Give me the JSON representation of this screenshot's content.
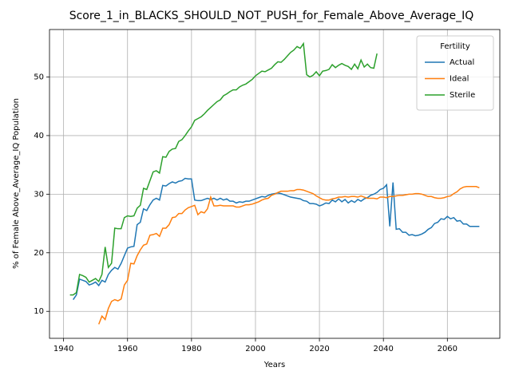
{
  "chart_data": {
    "type": "line",
    "title": "Score_1_in_BLACKS_SHOULD_NOT_PUSH_for_Female_Above_Average_IQ",
    "xlabel": "Years",
    "ylabel": "% of Female Above_Average_IQ Population",
    "x": [
      1942,
      1943,
      1944,
      1945,
      1946,
      1947,
      1948,
      1949,
      1950,
      1951,
      1952,
      1953,
      1954,
      1955,
      1956,
      1957,
      1958,
      1959,
      1960,
      1961,
      1962,
      1963,
      1964,
      1965,
      1966,
      1967,
      1968,
      1969,
      1970,
      1971,
      1972,
      1973,
      1974,
      1975,
      1976,
      1977,
      1978,
      1979,
      1980,
      1981,
      1982,
      1983,
      1984,
      1985,
      1986,
      1987,
      1988,
      1989,
      1990,
      1991,
      1992,
      1993,
      1994,
      1995,
      1996,
      1997,
      1998,
      1999,
      2000,
      2001,
      2002,
      2003,
      2004,
      2005,
      2006,
      2007,
      2008,
      2009,
      2010,
      2011,
      2012,
      2013,
      2014,
      2015,
      2016,
      2017,
      2018,
      2019,
      2020,
      2021,
      2022,
      2023,
      2024,
      2025,
      2026,
      2027,
      2028,
      2029,
      2030,
      2031,
      2032,
      2033,
      2034,
      2035,
      2036,
      2037,
      2038,
      2039,
      2040,
      2041,
      2042,
      2043,
      2044,
      2045,
      2046,
      2047,
      2048,
      2049,
      2050,
      2051,
      2052,
      2053,
      2054,
      2055,
      2056,
      2057,
      2058,
      2059,
      2060,
      2061,
      2062,
      2063,
      2064,
      2065,
      2066,
      2067,
      2068,
      2069,
      2070
    ],
    "series": [
      {
        "name": "Actual",
        "color": "#1f77b4",
        "values": [
          null,
          12,
          12.8,
          15.5,
          15.3,
          15.1,
          14.5,
          14.7,
          15,
          14.4,
          15.3,
          15,
          16.3,
          17,
          17.5,
          17.2,
          18.2,
          19.5,
          20.8,
          21,
          21.1,
          24.8,
          25.2,
          27.5,
          27.2,
          28.2,
          29,
          29.3,
          29,
          31.5,
          31.4,
          31.8,
          32.1,
          31.9,
          32.2,
          32.3,
          32.7,
          32.6,
          32.6,
          29,
          28.9,
          28.9,
          29.1,
          29.3,
          29.1,
          29.3,
          29,
          29.3,
          29,
          29.2,
          28.8,
          28.8,
          28.5,
          28.7,
          28.6,
          28.8,
          28.8,
          29,
          29.2,
          29.4,
          29.6,
          29.5,
          29.8,
          30,
          30.1,
          30.2,
          30.1,
          29.9,
          29.7,
          29.5,
          29.4,
          29.3,
          29.2,
          28.9,
          28.8,
          28.4,
          28.4,
          28.3,
          28,
          28.2,
          28.5,
          28.4,
          29,
          28.7,
          29.2,
          28.7,
          29.1,
          28.5,
          28.9,
          28.6,
          29.1,
          28.8,
          29.2,
          29.4,
          29.8,
          30,
          30.3,
          30.8,
          31,
          31.6,
          24.5,
          32,
          24,
          24.1,
          23.5,
          23.5,
          23,
          23.1,
          22.9,
          23,
          23.2,
          23.5,
          24,
          24.3,
          25,
          25.2,
          25.8,
          25.7,
          26.2,
          25.8,
          26,
          25.4,
          25.5,
          24.9,
          24.9,
          24.5,
          24.5,
          24.5,
          24.5
        ]
      },
      {
        "name": "Ideal",
        "color": "#ff7f0e",
        "values": [
          null,
          null,
          null,
          null,
          null,
          null,
          null,
          null,
          null,
          7.8,
          9.2,
          8.6,
          10.5,
          11.7,
          12,
          11.8,
          12.1,
          14.5,
          15.3,
          18.2,
          18.1,
          19.5,
          20.5,
          21.3,
          21.5,
          23,
          23.1,
          23.3,
          22.8,
          24.2,
          24.2,
          24.8,
          26,
          26.1,
          26.7,
          26.7,
          27.3,
          27.7,
          27.9,
          28.1,
          26.5,
          27,
          26.8,
          27.5,
          29.5,
          28,
          28,
          28.1,
          28,
          28,
          28,
          28,
          27.8,
          27.8,
          28,
          28.2,
          28.2,
          28.3,
          28.5,
          28.7,
          29,
          29.2,
          29.3,
          29.8,
          30,
          30.3,
          30.5,
          30.5,
          30.5,
          30.6,
          30.6,
          30.8,
          30.8,
          30.7,
          30.5,
          30.3,
          30.1,
          29.7,
          29.4,
          29.1,
          29,
          29,
          29.2,
          29.3,
          29.5,
          29.5,
          29.6,
          29.5,
          29.6,
          29.6,
          29.5,
          29.7,
          29.5,
          29.3,
          29.3,
          29.3,
          29.2,
          29.5,
          29.5,
          29.4,
          29.6,
          29.6,
          29.7,
          29.8,
          29.8,
          29.9,
          30,
          30,
          30.1,
          30.1,
          30,
          29.8,
          29.6,
          29.6,
          29.4,
          29.3,
          29.3,
          29.4,
          29.6,
          29.7,
          30.1,
          30.4,
          30.9,
          31.2,
          31.3,
          31.3,
          31.3,
          31.3,
          31.1
        ]
      },
      {
        "name": "Sterile",
        "color": "#2ca02c",
        "values": [
          12.8,
          12.8,
          13.2,
          16.3,
          16.1,
          15.8,
          15,
          15.3,
          15.6,
          15.1,
          16.3,
          21,
          17.5,
          18.2,
          24.2,
          24.1,
          24.1,
          26,
          26.3,
          26.2,
          26.3,
          27.6,
          28.1,
          31,
          30.8,
          32.3,
          33.8,
          34,
          33.6,
          36.4,
          36.3,
          37.3,
          37.7,
          37.8,
          39,
          39.3,
          40,
          40.8,
          41.5,
          42.6,
          42.9,
          43.2,
          43.7,
          44.3,
          44.8,
          45.3,
          45.8,
          46.1,
          46.8,
          47.1,
          47.5,
          47.8,
          47.8,
          48.3,
          48.6,
          48.8,
          49.2,
          49.6,
          50.2,
          50.6,
          51,
          50.9,
          51.2,
          51.5,
          52.1,
          52.6,
          52.5,
          53,
          53.6,
          54.2,
          54.6,
          55.2,
          54.9,
          55.7,
          50.4,
          50,
          50.3,
          50.9,
          50.2,
          51,
          51.1,
          51.3,
          52.1,
          51.6,
          52,
          52.3,
          52,
          51.8,
          51.3,
          52.2,
          51.4,
          52.9,
          51.7,
          52.2,
          51.6,
          51.5,
          54,
          null,
          null,
          null,
          null,
          null,
          null,
          null,
          null,
          null,
          null,
          null,
          null,
          null,
          null,
          null,
          null,
          null,
          null,
          null,
          null,
          null,
          null,
          null,
          null,
          null,
          null,
          null,
          null,
          null,
          null,
          null,
          null
        ]
      }
    ],
    "xlim": [
      1935.6,
      2076.4
    ],
    "ylim": [
      5.4,
      58.1
    ],
    "xticks": [
      1940,
      1960,
      1980,
      2000,
      2020,
      2040,
      2060
    ],
    "yticks": [
      10,
      20,
      30,
      40,
      50
    ],
    "grid": true,
    "legend_title": "Fertility",
    "legend_loc": "upper right"
  }
}
